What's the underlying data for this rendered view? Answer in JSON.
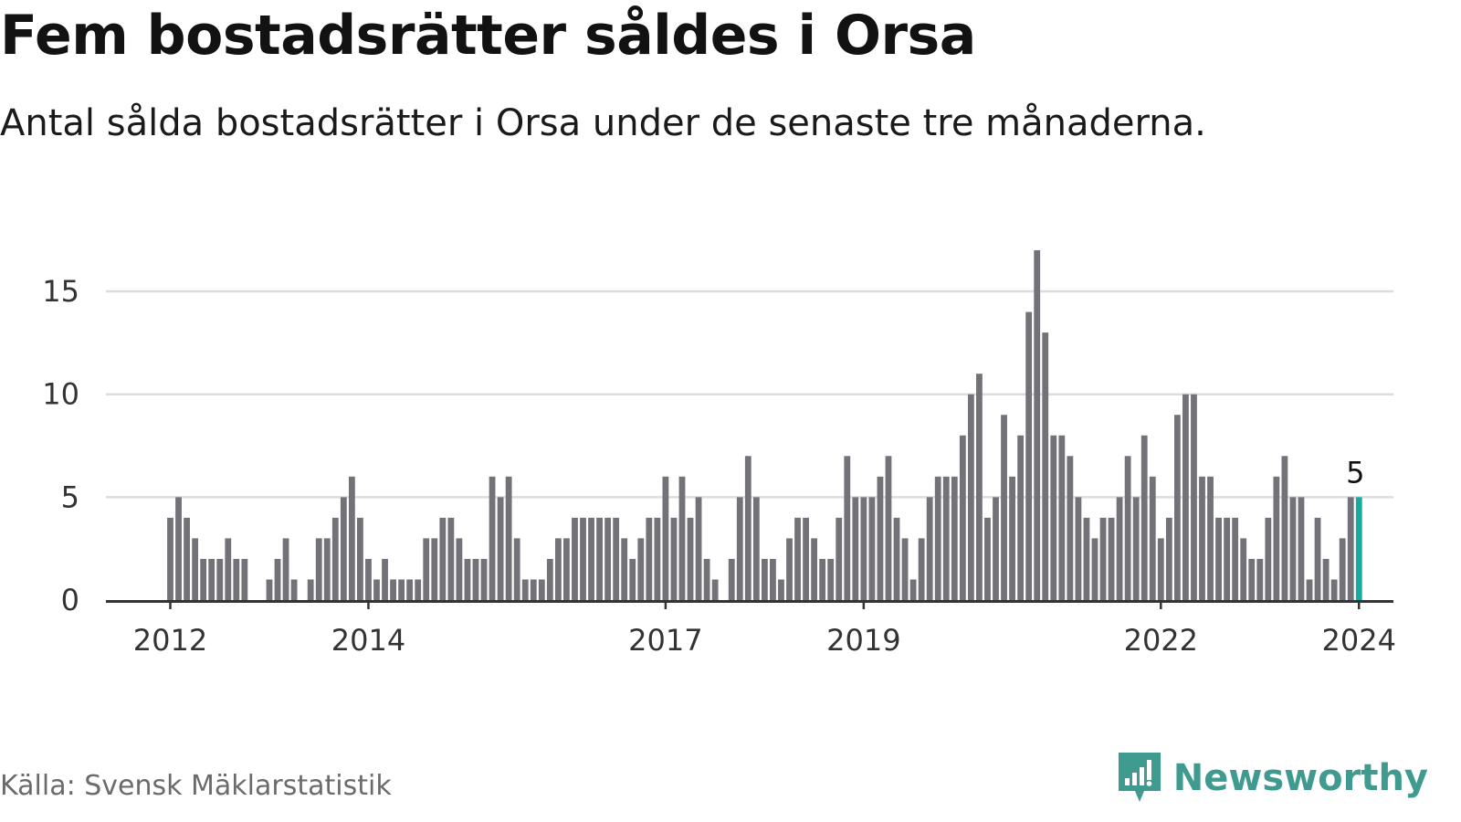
{
  "header": {
    "title": "Fem bostadsrätter såldes i Orsa",
    "subtitle": "Antal sålda bostadsrätter i Orsa under de senaste tre månaderna."
  },
  "footer": {
    "source": "Källa: Svensk Mäklarstatistik",
    "brand": "Newsworthy"
  },
  "colors": {
    "bar": "#737278",
    "highlight": "#17aaa0",
    "grid": "#dddddd",
    "axis": "#333333",
    "brand": "#3f9a8f"
  },
  "chart_data": {
    "type": "bar",
    "title": "Fem bostadsrätter såldes i Orsa",
    "xlabel": "",
    "ylabel": "",
    "ylim": [
      0,
      17
    ],
    "grid": true,
    "start": "2012-01",
    "yticks": [
      0,
      5,
      10,
      15
    ],
    "xticks": [
      {
        "label": "2012",
        "index": 0
      },
      {
        "label": "2014",
        "index": 24
      },
      {
        "label": "2017",
        "index": 60
      },
      {
        "label": "2019",
        "index": 84
      },
      {
        "label": "2022",
        "index": 120
      },
      {
        "label": "2024",
        "index": 144
      }
    ],
    "values": [
      4,
      5,
      4,
      3,
      2,
      2,
      2,
      3,
      2,
      2,
      0,
      0,
      1,
      2,
      3,
      1,
      0,
      1,
      3,
      3,
      4,
      5,
      6,
      4,
      2,
      1,
      2,
      1,
      1,
      1,
      1,
      3,
      3,
      4,
      4,
      3,
      2,
      2,
      2,
      6,
      5,
      6,
      3,
      1,
      1,
      1,
      2,
      3,
      3,
      4,
      4,
      4,
      4,
      4,
      4,
      3,
      2,
      3,
      4,
      4,
      6,
      4,
      6,
      4,
      5,
      2,
      1,
      0,
      2,
      5,
      7,
      5,
      2,
      2,
      1,
      3,
      4,
      4,
      3,
      2,
      2,
      4,
      7,
      5,
      5,
      5,
      6,
      7,
      4,
      3,
      1,
      3,
      5,
      6,
      6,
      6,
      8,
      10,
      11,
      4,
      5,
      9,
      6,
      8,
      14,
      17,
      13,
      8,
      8,
      7,
      5,
      4,
      3,
      4,
      4,
      5,
      7,
      5,
      8,
      6,
      3,
      4,
      9,
      10,
      10,
      6,
      6,
      4,
      4,
      4,
      3,
      2,
      2,
      4,
      6,
      7,
      5,
      5,
      1,
      4,
      2,
      1,
      3,
      5,
      5
    ],
    "highlight_index": 144,
    "highlight_label": "5"
  }
}
